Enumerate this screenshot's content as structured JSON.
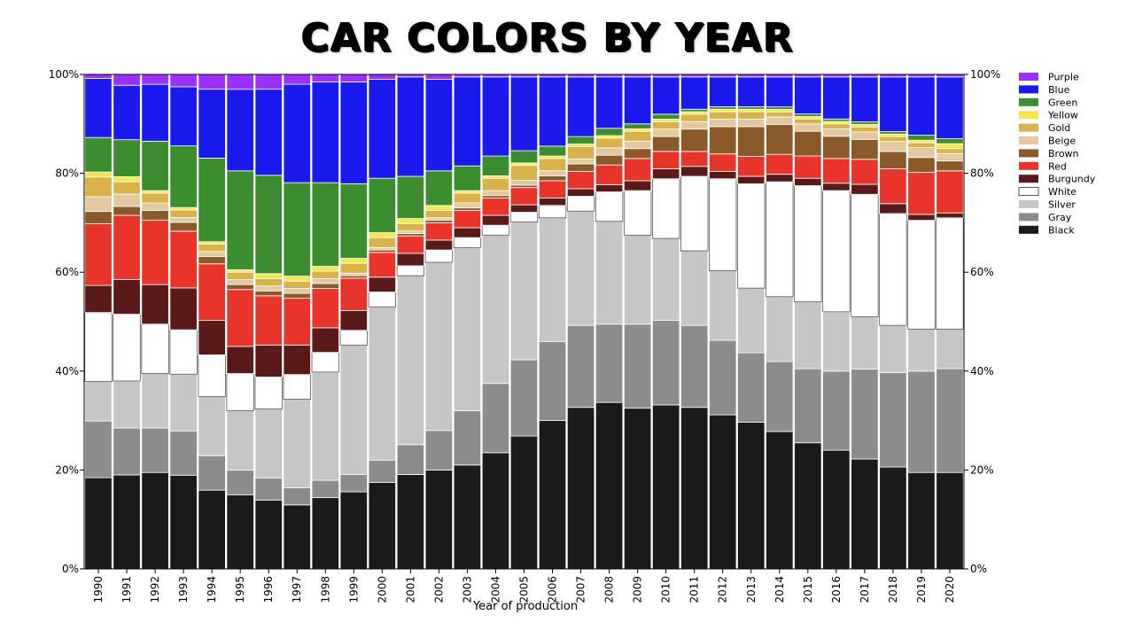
{
  "chart_data": {
    "type": "bar",
    "stacked": true,
    "normalized": true,
    "title": "CAR COLORS BY YEAR",
    "xlabel": "Year of production",
    "ylabel": "",
    "ylim": [
      0,
      100
    ],
    "y_ticks": [
      "0%",
      "20%",
      "40%",
      "60%",
      "80%",
      "100%"
    ],
    "y_axis_both_sides": true,
    "grid": false,
    "legend_position": "top-right",
    "categories": [
      "1990",
      "1991",
      "1992",
      "1993",
      "1994",
      "1995",
      "1996",
      "1997",
      "1998",
      "1999",
      "2000",
      "2001",
      "2002",
      "2003",
      "2004",
      "2005",
      "2006",
      "2007",
      "2008",
      "2009",
      "2010",
      "2011",
      "2012",
      "2013",
      "2014",
      "2015",
      "2016",
      "2017",
      "2018",
      "2019",
      "2020"
    ],
    "legend_order": [
      "Purple",
      "Blue",
      "Green",
      "Yellow",
      "Gold",
      "Beige",
      "Brown",
      "Red",
      "Burgundy",
      "White",
      "Silver",
      "Gray",
      "Black"
    ],
    "series": [
      {
        "name": "Black",
        "color": "#1a1a1a",
        "values": [
          18.5,
          19,
          19.5,
          19,
          16,
          15,
          14,
          13,
          14.5,
          15.5,
          17.5,
          19,
          20,
          21,
          23.5,
          27,
          30,
          32.5,
          34,
          32.5,
          33,
          32.5,
          31,
          29.5,
          27.5,
          25.5,
          24,
          22,
          20.5,
          19.5,
          19.5
        ]
      },
      {
        "name": "Gray",
        "color": "#8c8c8c",
        "values": [
          11.5,
          9.5,
          9,
          9,
          7,
          5,
          4.5,
          3.5,
          3.5,
          3.5,
          4.5,
          6,
          8,
          11,
          14,
          15.5,
          16,
          16.5,
          16,
          17,
          17,
          16.5,
          15,
          14,
          14,
          15,
          16,
          18,
          19,
          20.5,
          21
        ]
      },
      {
        "name": "Silver",
        "color": "#c6c6c6",
        "values": [
          8,
          9.5,
          11,
          11.5,
          12,
          12,
          14,
          18,
          22,
          26,
          31,
          34,
          34,
          33,
          30,
          28,
          25,
          23,
          21,
          18,
          16.5,
          15,
          14,
          13,
          13,
          13.5,
          12,
          10.5,
          9.5,
          8.5,
          8
        ]
      },
      {
        "name": "White",
        "color": "#ffffff",
        "values": [
          14,
          13.5,
          10,
          9,
          8.5,
          7.5,
          6.5,
          5,
          4,
          3,
          3,
          2,
          2.5,
          2,
          2,
          2,
          2.5,
          3,
          6,
          9,
          12,
          15,
          18.5,
          21,
          23,
          23.5,
          24.5,
          24.5,
          22.5,
          22,
          22.5
        ]
      },
      {
        "name": "Burgundy",
        "color": "#5a1a1a",
        "values": [
          5.5,
          7,
          8,
          8.5,
          7,
          5.5,
          6.5,
          6,
          5,
          4,
          3,
          2.5,
          2,
          2,
          2,
          1.5,
          1.5,
          1.5,
          1.5,
          2,
          2,
          2,
          1.5,
          1.5,
          1.5,
          1.5,
          1.5,
          2,
          2,
          1.2,
          1
        ]
      },
      {
        "name": "Red",
        "color": "#e8342b",
        "values": [
          12.5,
          13,
          13,
          11.5,
          11.5,
          11.5,
          10,
          9.5,
          8,
          6.5,
          5,
          3.5,
          3.5,
          3.5,
          3.5,
          3.5,
          3.5,
          3.5,
          4,
          4.5,
          3.5,
          3,
          3.5,
          4,
          4,
          4.5,
          5,
          5,
          7,
          8.5,
          8.5
        ]
      },
      {
        "name": "Brown",
        "color": "#8b5a2b",
        "values": [
          2.5,
          1.8,
          2,
          1.8,
          1.5,
          1,
          1,
          1,
          1,
          0.5,
          0.5,
          0.5,
          0.5,
          0.5,
          0.5,
          0.5,
          1,
          1.5,
          2,
          2,
          3,
          4.5,
          5.5,
          6,
          6,
          5,
          4.5,
          4,
          3.5,
          3,
          2
        ]
      },
      {
        "name": "Beige",
        "color": "#e3c9a0",
        "values": [
          3,
          2.5,
          1.5,
          1,
          1,
          1,
          1,
          1,
          1,
          0.5,
          0.5,
          0.5,
          0.5,
          1,
          1,
          1,
          1,
          1,
          1.5,
          1.5,
          1.5,
          1.5,
          1.5,
          1.5,
          1.5,
          1.5,
          1.5,
          1.5,
          2,
          2,
          1.5
        ]
      },
      {
        "name": "Gold",
        "color": "#d9b24a",
        "values": [
          4,
          2.5,
          2,
          1.5,
          1.5,
          1.5,
          1.5,
          1.5,
          1.5,
          2,
          2,
          1.5,
          1.5,
          2,
          2.5,
          3,
          2.5,
          2.5,
          2,
          2,
          1.5,
          1.5,
          1.5,
          1.5,
          1,
          1,
          1,
          1,
          1,
          1,
          1
        ]
      },
      {
        "name": "Yellow",
        "color": "#f2e94e",
        "values": [
          1,
          1,
          0.5,
          0.5,
          0.5,
          0.5,
          1,
          1,
          1,
          1,
          1,
          1,
          1,
          0.5,
          0.5,
          0.5,
          0.5,
          0.5,
          0.5,
          0.5,
          0.5,
          0.5,
          0.5,
          0.5,
          0.5,
          0.5,
          0.5,
          0.5,
          0.5,
          0.5,
          1
        ]
      },
      {
        "name": "Green",
        "color": "#3c8c30",
        "values": [
          7,
          7.5,
          10,
          12.5,
          17,
          20,
          20,
          19,
          17,
          15,
          11,
          8.5,
          7,
          5,
          4,
          2.5,
          2,
          1.5,
          1.5,
          1,
          1,
          0.5,
          0.5,
          0.5,
          0.5,
          0.5,
          0.5,
          0.5,
          0.5,
          1,
          1
        ]
      },
      {
        "name": "Blue",
        "color": "#1a1aee",
        "values": [
          12,
          11,
          11.5,
          12,
          14,
          16.5,
          17.5,
          20,
          20.5,
          20.5,
          20,
          20,
          18.5,
          18,
          16,
          15,
          14,
          12,
          10.5,
          9.5,
          7.5,
          6.5,
          6,
          6,
          6,
          7.5,
          8.5,
          9,
          11,
          11.8,
          12.5
        ]
      },
      {
        "name": "Purple",
        "color": "#9b30ff",
        "values": [
          0.8,
          2.2,
          2,
          2.5,
          3,
          3,
          3,
          2,
          1.5,
          1.5,
          1,
          0.5,
          1,
          0.5,
          0.5,
          0.5,
          0.5,
          0.5,
          0.5,
          0.5,
          0.5,
          0.5,
          0.5,
          0.5,
          0.5,
          0.5,
          0.5,
          0.5,
          0.5,
          0.5,
          0.5
        ]
      }
    ]
  }
}
